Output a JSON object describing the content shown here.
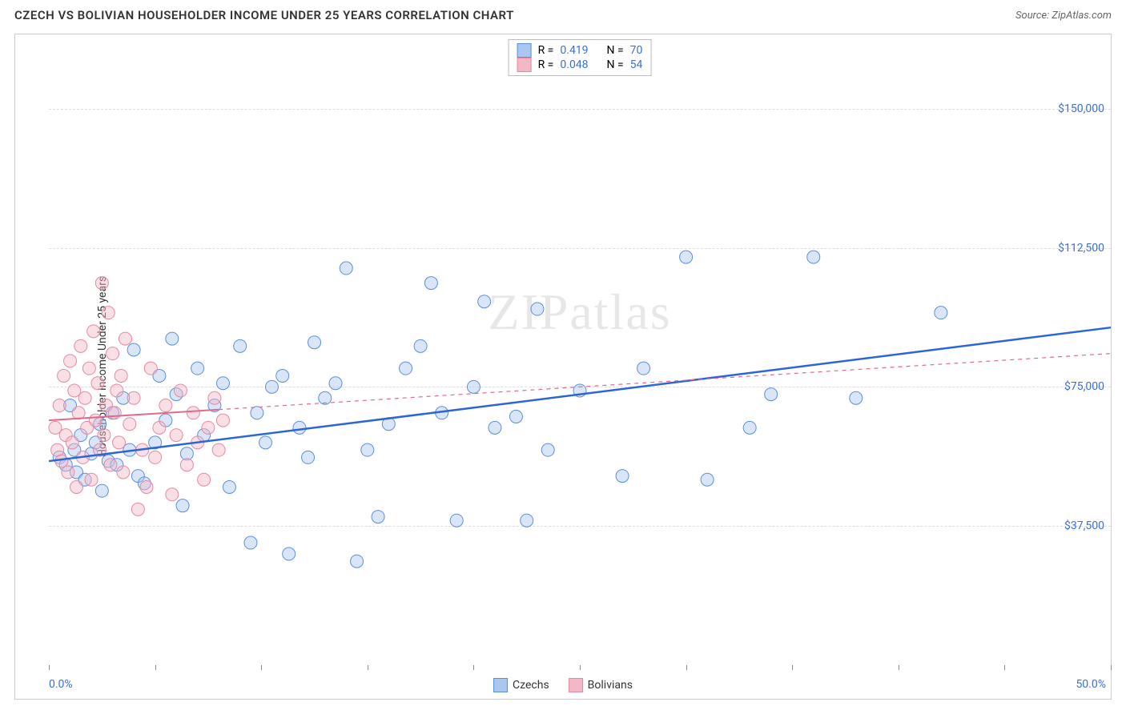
{
  "title": "CZECH VS BOLIVIAN HOUSEHOLDER INCOME UNDER 25 YEARS CORRELATION CHART",
  "source": "Source: ZipAtlas.com",
  "ylabel": "Householder Income Under 25 years",
  "watermark": "ZIPatlas",
  "chart": {
    "type": "scatter",
    "xlim": [
      0,
      50
    ],
    "ylim": [
      0,
      170000
    ],
    "xticks_pct": [
      0,
      5,
      10,
      15,
      20,
      25,
      30,
      35,
      40,
      45,
      50
    ],
    "xaxis_labels": [
      {
        "pct": 0,
        "text": "0.0%"
      },
      {
        "pct": 50,
        "text": "50.0%"
      }
    ],
    "grid_y": [
      {
        "val": 37500,
        "label": "$37,500"
      },
      {
        "val": 75000,
        "label": "$75,000"
      },
      {
        "val": 112500,
        "label": "$112,500"
      },
      {
        "val": 150000,
        "label": "$150,000"
      }
    ],
    "grid_color": "#dddddd",
    "background_color": "#ffffff",
    "marker_radius": 8,
    "marker_opacity": 0.45,
    "series": [
      {
        "name": "Czechs",
        "fill": "#a9c7ef",
        "stroke": "#5b8fdc",
        "trend": {
          "x1": 0,
          "y1": 55000,
          "x2": 50,
          "y2": 91000,
          "solid_until_x": 50,
          "stroke": "#2b66d8",
          "width": 2.5
        },
        "r": 0.419,
        "n": 70,
        "points": [
          [
            0.5,
            56000
          ],
          [
            0.8,
            54000
          ],
          [
            1.0,
            70000
          ],
          [
            1.2,
            58000
          ],
          [
            1.3,
            52000
          ],
          [
            1.5,
            62000
          ],
          [
            1.7,
            50000
          ],
          [
            2.0,
            57000
          ],
          [
            2.2,
            60000
          ],
          [
            2.4,
            65000
          ],
          [
            2.5,
            47000
          ],
          [
            2.8,
            55000
          ],
          [
            3.0,
            68000
          ],
          [
            3.2,
            54000
          ],
          [
            3.5,
            72000
          ],
          [
            3.8,
            58000
          ],
          [
            4.0,
            85000
          ],
          [
            4.2,
            51000
          ],
          [
            4.5,
            49000
          ],
          [
            5.0,
            60000
          ],
          [
            5.2,
            78000
          ],
          [
            5.5,
            66000
          ],
          [
            5.8,
            88000
          ],
          [
            6.0,
            73000
          ],
          [
            6.3,
            43000
          ],
          [
            6.5,
            57000
          ],
          [
            7.0,
            80000
          ],
          [
            7.3,
            62000
          ],
          [
            7.8,
            70000
          ],
          [
            8.2,
            76000
          ],
          [
            8.5,
            48000
          ],
          [
            9.0,
            86000
          ],
          [
            9.5,
            33000
          ],
          [
            9.8,
            68000
          ],
          [
            10.2,
            60000
          ],
          [
            10.5,
            75000
          ],
          [
            11.0,
            78000
          ],
          [
            11.3,
            30000
          ],
          [
            11.8,
            64000
          ],
          [
            12.2,
            56000
          ],
          [
            12.5,
            87000
          ],
          [
            13.0,
            72000
          ],
          [
            13.5,
            76000
          ],
          [
            14.0,
            107000
          ],
          [
            14.5,
            28000
          ],
          [
            15.0,
            58000
          ],
          [
            15.5,
            40000
          ],
          [
            16.0,
            65000
          ],
          [
            16.8,
            80000
          ],
          [
            17.5,
            86000
          ],
          [
            18.0,
            103000
          ],
          [
            18.5,
            68000
          ],
          [
            19.2,
            39000
          ],
          [
            20.0,
            75000
          ],
          [
            20.5,
            98000
          ],
          [
            21.0,
            64000
          ],
          [
            22.0,
            67000
          ],
          [
            22.5,
            39000
          ],
          [
            23.0,
            96000
          ],
          [
            23.5,
            58000
          ],
          [
            25.0,
            74000
          ],
          [
            27.0,
            51000
          ],
          [
            28.0,
            80000
          ],
          [
            30.0,
            110000
          ],
          [
            31.0,
            50000
          ],
          [
            33.0,
            64000
          ],
          [
            34.0,
            73000
          ],
          [
            36.0,
            110000
          ],
          [
            38.0,
            72000
          ],
          [
            42.0,
            95000
          ]
        ]
      },
      {
        "name": "Bolivians",
        "fill": "#f4b7c6",
        "stroke": "#e48aa2",
        "trend": {
          "x1": 0,
          "y1": 66000,
          "x2": 50,
          "y2": 84000,
          "solid_until_x": 8,
          "stroke": "#e06a8a",
          "width": 2
        },
        "r": 0.048,
        "n": 54,
        "points": [
          [
            0.3,
            64000
          ],
          [
            0.4,
            58000
          ],
          [
            0.5,
            70000
          ],
          [
            0.6,
            55000
          ],
          [
            0.7,
            78000
          ],
          [
            0.8,
            62000
          ],
          [
            0.9,
            52000
          ],
          [
            1.0,
            82000
          ],
          [
            1.1,
            60000
          ],
          [
            1.2,
            74000
          ],
          [
            1.3,
            48000
          ],
          [
            1.4,
            68000
          ],
          [
            1.5,
            86000
          ],
          [
            1.6,
            56000
          ],
          [
            1.7,
            72000
          ],
          [
            1.8,
            64000
          ],
          [
            1.9,
            80000
          ],
          [
            2.0,
            50000
          ],
          [
            2.1,
            90000
          ],
          [
            2.2,
            66000
          ],
          [
            2.3,
            76000
          ],
          [
            2.4,
            58000
          ],
          [
            2.5,
            103000
          ],
          [
            2.6,
            62000
          ],
          [
            2.7,
            70000
          ],
          [
            2.8,
            95000
          ],
          [
            2.9,
            54000
          ],
          [
            3.0,
            84000
          ],
          [
            3.1,
            68000
          ],
          [
            3.2,
            74000
          ],
          [
            3.3,
            60000
          ],
          [
            3.4,
            78000
          ],
          [
            3.5,
            52000
          ],
          [
            3.6,
            88000
          ],
          [
            3.8,
            65000
          ],
          [
            4.0,
            72000
          ],
          [
            4.2,
            42000
          ],
          [
            4.4,
            58000
          ],
          [
            4.6,
            48000
          ],
          [
            4.8,
            80000
          ],
          [
            5.0,
            56000
          ],
          [
            5.2,
            64000
          ],
          [
            5.5,
            70000
          ],
          [
            5.8,
            46000
          ],
          [
            6.0,
            62000
          ],
          [
            6.2,
            74000
          ],
          [
            6.5,
            54000
          ],
          [
            6.8,
            68000
          ],
          [
            7.0,
            60000
          ],
          [
            7.3,
            50000
          ],
          [
            7.5,
            64000
          ],
          [
            7.8,
            72000
          ],
          [
            8.0,
            58000
          ],
          [
            8.2,
            66000
          ]
        ]
      }
    ]
  },
  "bottom_legend": [
    {
      "label": "Czechs",
      "fill": "#a9c7ef",
      "stroke": "#5b8fdc"
    },
    {
      "label": "Bolivians",
      "fill": "#f4b7c6",
      "stroke": "#e48aa2"
    }
  ]
}
